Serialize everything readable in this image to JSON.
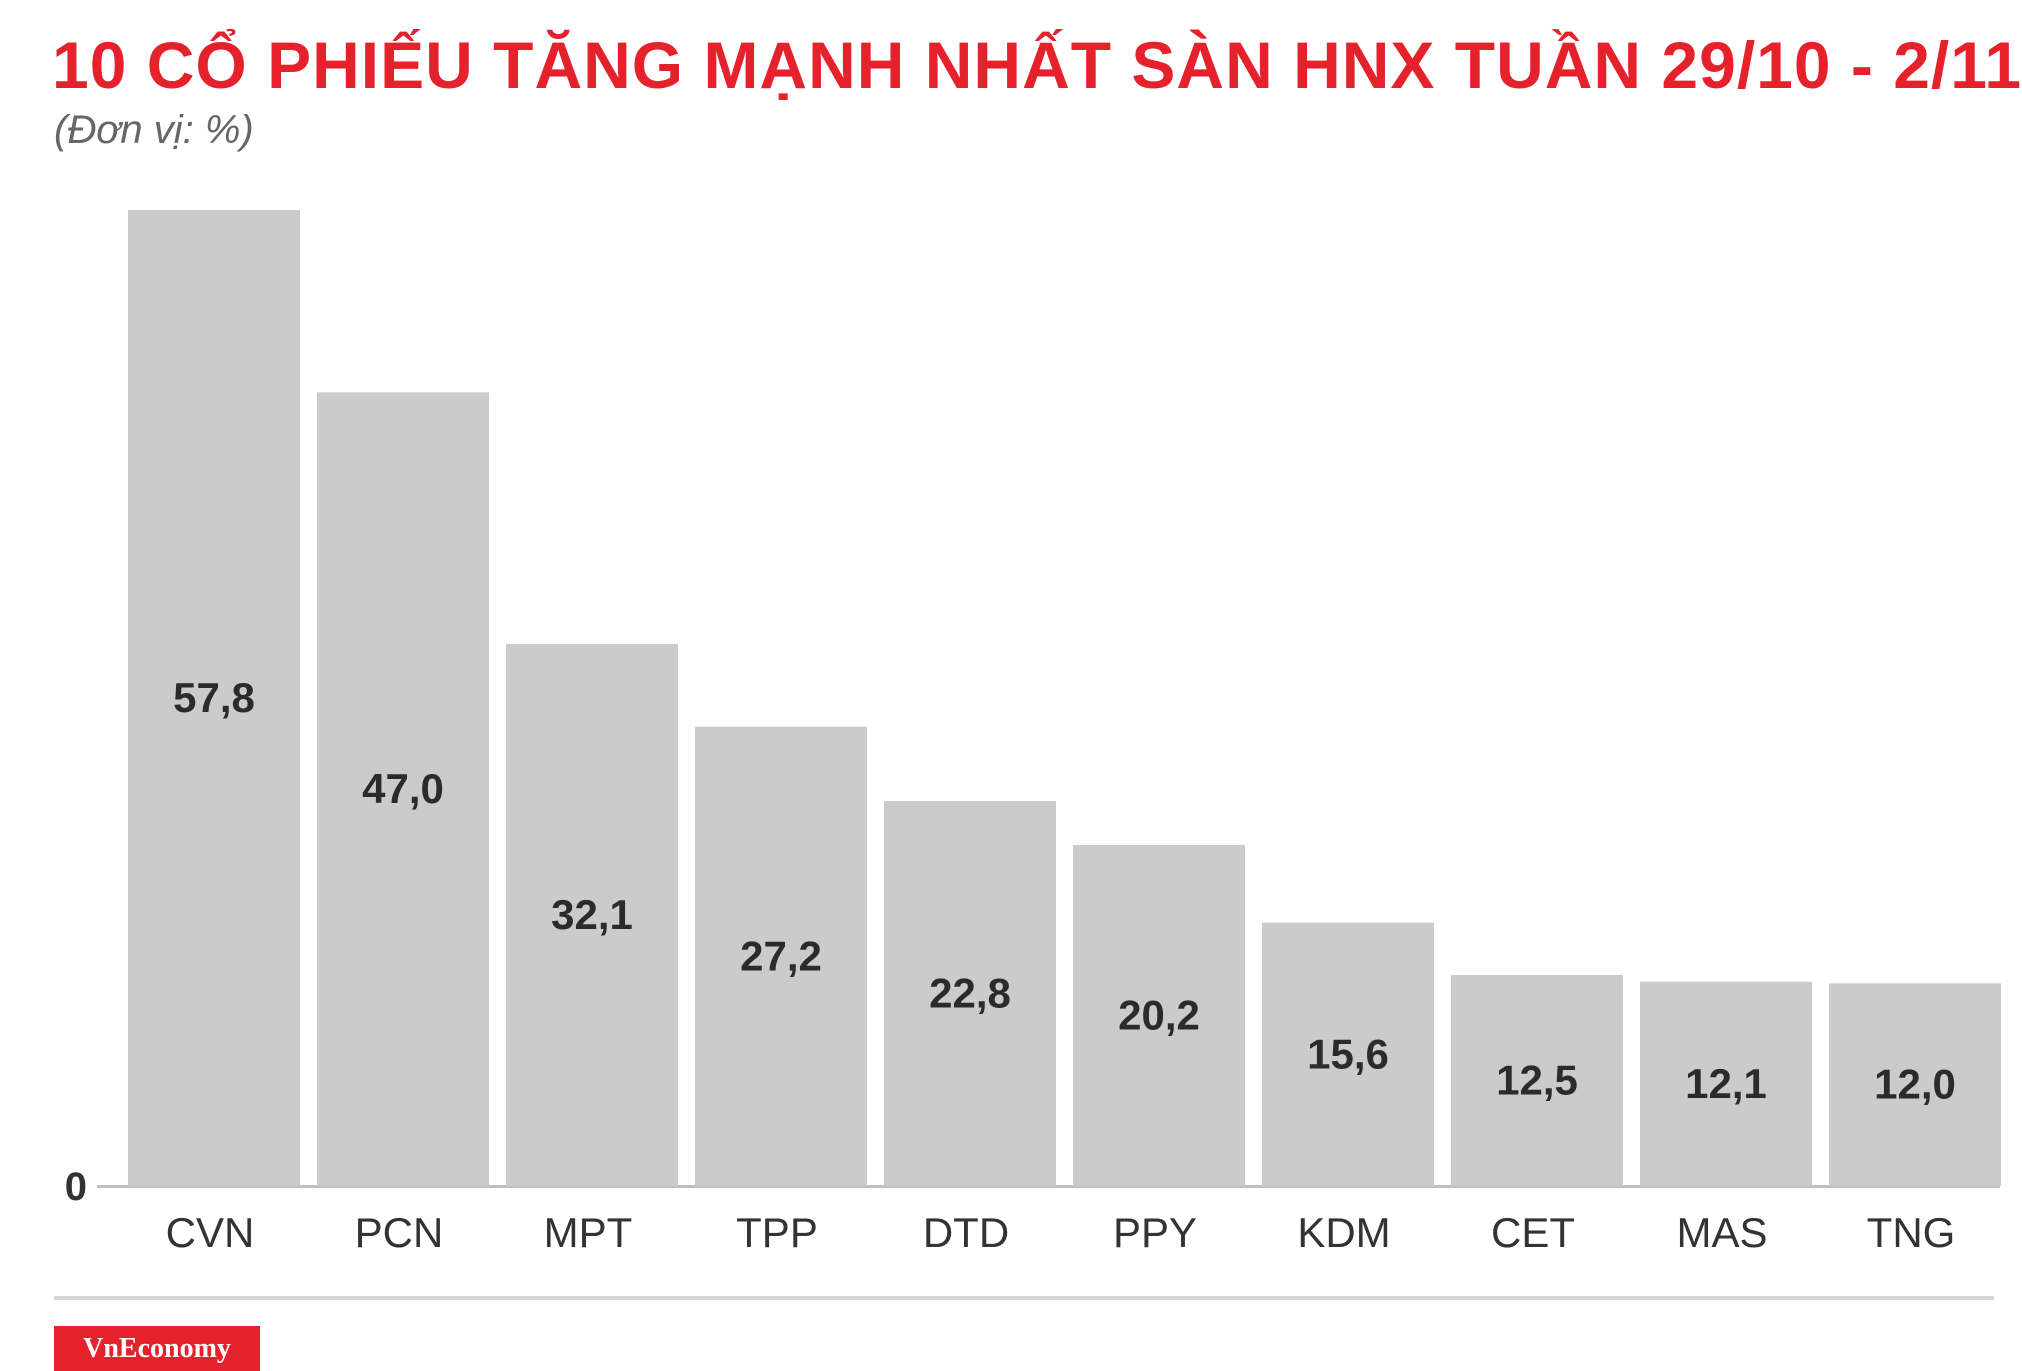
{
  "colors": {
    "title": "#e5222c",
    "subtitle": "#666666",
    "bar": "#cccbcb",
    "value_label": "#2b2b2b",
    "axis": "#bfbfbf",
    "tick_label": "#333333",
    "brand_bg": "#e5222c",
    "brand_text": "#ffffff"
  },
  "chart_data": {
    "type": "bar",
    "title": "10 CỔ PHIẾU TĂNG MẠNH NHẤT SÀN HNX TUẦN 29/10 - 2/11",
    "subtitle": "(Đơn vị: %)",
    "categories": [
      "CVN",
      "PCN",
      "MPT",
      "TPP",
      "DTD",
      "PPY",
      "KDM",
      "CET",
      "MAS",
      "TNG"
    ],
    "values": [
      57.8,
      47.0,
      32.1,
      27.2,
      22.8,
      20.2,
      15.6,
      12.5,
      12.1,
      12.0
    ],
    "value_labels": [
      "57,8",
      "47,0",
      "32,1",
      "27,2",
      "22,8",
      "20,2",
      "15,6",
      "12,5",
      "12,1",
      "12,0"
    ],
    "y_tick_labels": [
      "0"
    ],
    "ylim": [
      0,
      57.8
    ],
    "grid": false,
    "legend": "none"
  },
  "brand": {
    "logo_text": "VnEconomy"
  }
}
